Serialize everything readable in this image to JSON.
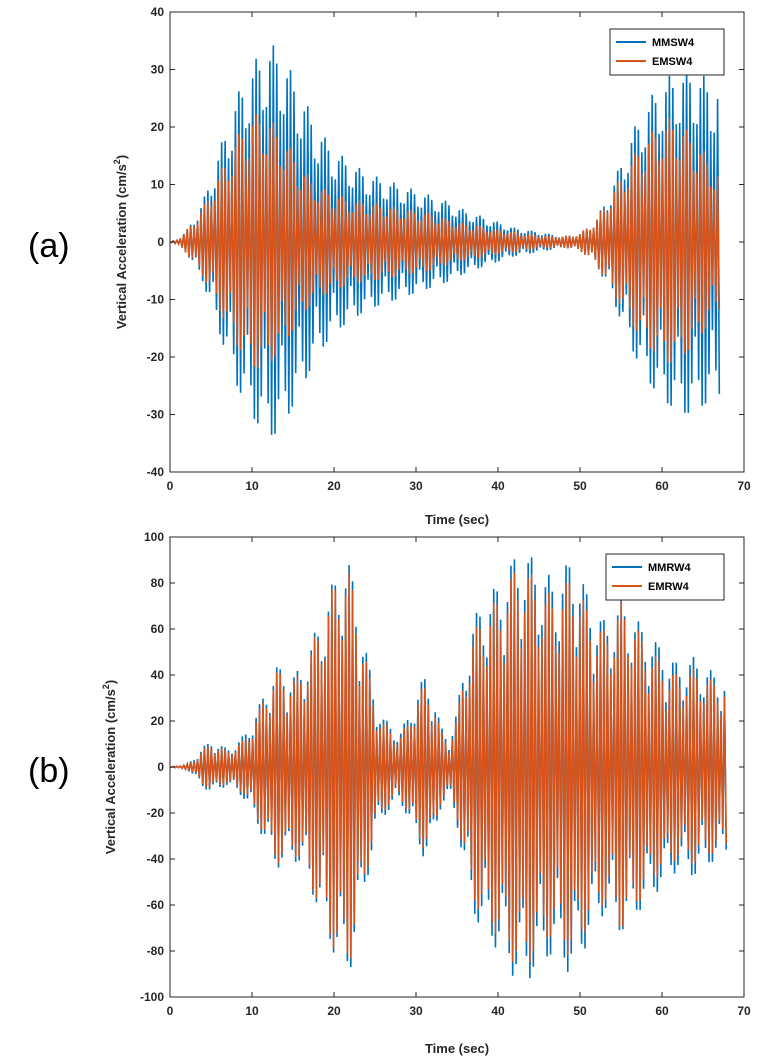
{
  "colors": {
    "series1": "#0072bd",
    "series2": "#d95319",
    "axis": "#262626"
  },
  "chart_data": [
    {
      "type": "line",
      "panel_label": "(a)",
      "xlabel": "Time (sec)",
      "ylabel_main": "Vertical Acceleration (cm/s",
      "ylabel_sup": "2",
      "ylabel_end": ")",
      "xlim": [
        0,
        70
      ],
      "ylim": [
        -40,
        40
      ],
      "xticks": [
        0,
        10,
        20,
        30,
        40,
        50,
        60,
        70
      ],
      "yticks": [
        -40,
        -30,
        -20,
        -10,
        0,
        10,
        20,
        30,
        40
      ],
      "legend_position": "top-right",
      "duration": 67,
      "cycle_period": 0.42,
      "beat_period": 2.1,
      "series": [
        {
          "name": "MMSW4",
          "color": "#0072bd",
          "envelope": [
            [
              0,
              0
            ],
            [
              1,
              0.5
            ],
            [
              2,
              2
            ],
            [
              4,
              7
            ],
            [
              6,
              16
            ],
            [
              8,
              25
            ],
            [
              10,
              31
            ],
            [
              12,
              34.5
            ],
            [
              13,
              34
            ],
            [
              14,
              32
            ],
            [
              16,
              26
            ],
            [
              18,
              20
            ],
            [
              20,
              16
            ],
            [
              22,
              14
            ],
            [
              24,
              12
            ],
            [
              26,
              11
            ],
            [
              28,
              10
            ],
            [
              30,
              9
            ],
            [
              32,
              8
            ],
            [
              34,
              7
            ],
            [
              36,
              5.5
            ],
            [
              38,
              4.5
            ],
            [
              40,
              3.5
            ],
            [
              42,
              2.5
            ],
            [
              44,
              2
            ],
            [
              46,
              1.5
            ],
            [
              48,
              1
            ],
            [
              50,
              1.5
            ],
            [
              52,
              4
            ],
            [
              54,
              10
            ],
            [
              56,
              18
            ],
            [
              58,
              24
            ],
            [
              60,
              28
            ],
            [
              62,
              30
            ],
            [
              63,
              30.5
            ],
            [
              64,
              30
            ],
            [
              66,
              28
            ],
            [
              67,
              27
            ]
          ]
        },
        {
          "name": "EMSW4",
          "color": "#d95319",
          "envelope": [
            [
              0,
              0
            ],
            [
              1,
              0.5
            ],
            [
              2,
              2
            ],
            [
              4,
              6
            ],
            [
              6,
              12
            ],
            [
              8,
              18
            ],
            [
              10,
              22
            ],
            [
              11,
              22.5
            ],
            [
              12,
              22
            ],
            [
              14,
              18
            ],
            [
              16,
              13
            ],
            [
              18,
              10
            ],
            [
              20,
              8.5
            ],
            [
              22,
              7.5
            ],
            [
              24,
              7
            ],
            [
              26,
              6.5
            ],
            [
              28,
              6
            ],
            [
              30,
              5.5
            ],
            [
              32,
              5
            ],
            [
              34,
              4
            ],
            [
              36,
              3.2
            ],
            [
              38,
              2.8
            ],
            [
              40,
              2.2
            ],
            [
              42,
              1.8
            ],
            [
              44,
              1.4
            ],
            [
              46,
              1.1
            ],
            [
              48,
              1
            ],
            [
              50,
              1.5
            ],
            [
              52,
              4
            ],
            [
              54,
              9
            ],
            [
              56,
              14
            ],
            [
              58,
              18
            ],
            [
              60,
              21
            ],
            [
              61,
              21.5
            ],
            [
              62,
              21
            ],
            [
              64,
              18
            ],
            [
              66,
              14
            ],
            [
              67,
              12
            ]
          ]
        }
      ]
    },
    {
      "type": "line",
      "panel_label": "(b)",
      "xlabel": "Time (sec)",
      "ylabel_main": "Vertical Acceleration (cm/s",
      "ylabel_sup": "2",
      "ylabel_end": ")",
      "xlim": [
        0,
        70
      ],
      "ylim": [
        -100,
        100
      ],
      "xticks": [
        0,
        10,
        20,
        30,
        40,
        50,
        60,
        70
      ],
      "yticks": [
        -100,
        -80,
        -60,
        -40,
        -20,
        0,
        20,
        40,
        60,
        80,
        100
      ],
      "legend_position": "top-right",
      "duration": 68,
      "cycle_period": 0.42,
      "beat_period": 2.2,
      "series": [
        {
          "name": "MMRW4",
          "color": "#0072bd",
          "envelope": [
            [
              0,
              0
            ],
            [
              2,
              1
            ],
            [
              3,
              4
            ],
            [
              4,
              9
            ],
            [
              5,
              11
            ],
            [
              6,
              10
            ],
            [
              7,
              8
            ],
            [
              8,
              10
            ],
            [
              9,
              14
            ],
            [
              10,
              20
            ],
            [
              11,
              28
            ],
            [
              12,
              38
            ],
            [
              13,
              44
            ],
            [
              14,
              43
            ],
            [
              15,
              40
            ],
            [
              16,
              44
            ],
            [
              17,
              52
            ],
            [
              18,
              62
            ],
            [
              19,
              72
            ],
            [
              20,
              82
            ],
            [
              21,
              93
            ],
            [
              22,
              88
            ],
            [
              23,
              70
            ],
            [
              24,
              50
            ],
            [
              25,
              30
            ],
            [
              26,
              22
            ],
            [
              27,
              18
            ],
            [
              28,
              15
            ],
            [
              29,
              22
            ],
            [
              30,
              32
            ],
            [
              31,
              40
            ],
            [
              32,
              35
            ],
            [
              33,
              18
            ],
            [
              34,
              12
            ],
            [
              35,
              25
            ],
            [
              36,
              48
            ],
            [
              37,
              64
            ],
            [
              38,
              72
            ],
            [
              39,
              76
            ],
            [
              40,
              80
            ],
            [
              41,
              86
            ],
            [
              42,
              92
            ],
            [
              43,
              95
            ],
            [
              44,
              92
            ],
            [
              45,
              88
            ],
            [
              46,
              84
            ],
            [
              47,
              82
            ],
            [
              48,
              86
            ],
            [
              49,
              93
            ],
            [
              50,
              85
            ],
            [
              51,
              75
            ],
            [
              52,
              68
            ],
            [
              53,
              64
            ],
            [
              54,
              68
            ],
            [
              55,
              73
            ],
            [
              56,
              70
            ],
            [
              57,
              64
            ],
            [
              58,
              60
            ],
            [
              59,
              56
            ],
            [
              60,
              52
            ],
            [
              61,
              48
            ],
            [
              62,
              45
            ],
            [
              63,
              47
            ],
            [
              64,
              48
            ],
            [
              65,
              45
            ],
            [
              66,
              42
            ],
            [
              67,
              40
            ],
            [
              68,
              38
            ]
          ]
        },
        {
          "name": "EMRW4",
          "color": "#d95319",
          "envelope": [
            [
              0,
              0
            ],
            [
              2,
              1
            ],
            [
              3,
              3
            ],
            [
              4,
              8
            ],
            [
              5,
              10
            ],
            [
              6,
              9
            ],
            [
              7,
              7
            ],
            [
              8,
              9
            ],
            [
              9,
              12
            ],
            [
              10,
              18
            ],
            [
              11,
              26
            ],
            [
              12,
              36
            ],
            [
              13,
              42
            ],
            [
              14,
              41
            ],
            [
              15,
              38
            ],
            [
              16,
              42
            ],
            [
              17,
              50
            ],
            [
              18,
              60
            ],
            [
              19,
              70
            ],
            [
              20,
              80
            ],
            [
              21,
              90
            ],
            [
              22,
              84
            ],
            [
              23,
              66
            ],
            [
              24,
              46
            ],
            [
              25,
              27
            ],
            [
              26,
              20
            ],
            [
              27,
              16
            ],
            [
              28,
              13
            ],
            [
              29,
              20
            ],
            [
              30,
              30
            ],
            [
              31,
              36
            ],
            [
              32,
              32
            ],
            [
              33,
              16
            ],
            [
              34,
              10
            ],
            [
              35,
              22
            ],
            [
              36,
              44
            ],
            [
              37,
              58
            ],
            [
              38,
              66
            ],
            [
              39,
              70
            ],
            [
              40,
              74
            ],
            [
              41,
              80
            ],
            [
              42,
              86
            ],
            [
              43,
              88
            ],
            [
              44,
              85
            ],
            [
              45,
              80
            ],
            [
              46,
              76
            ],
            [
              47,
              74
            ],
            [
              48,
              78
            ],
            [
              49,
              86
            ],
            [
              50,
              78
            ],
            [
              51,
              68
            ],
            [
              52,
              62
            ],
            [
              53,
              60
            ],
            [
              54,
              64
            ],
            [
              55,
              72
            ],
            [
              56,
              68
            ],
            [
              57,
              60
            ],
            [
              58,
              55
            ],
            [
              59,
              50
            ],
            [
              60,
              46
            ],
            [
              61,
              42
            ],
            [
              62,
              40
            ],
            [
              63,
              42
            ],
            [
              64,
              43
            ],
            [
              65,
              41
            ],
            [
              66,
              38
            ],
            [
              67,
              37
            ],
            [
              68,
              35
            ]
          ]
        }
      ]
    }
  ]
}
